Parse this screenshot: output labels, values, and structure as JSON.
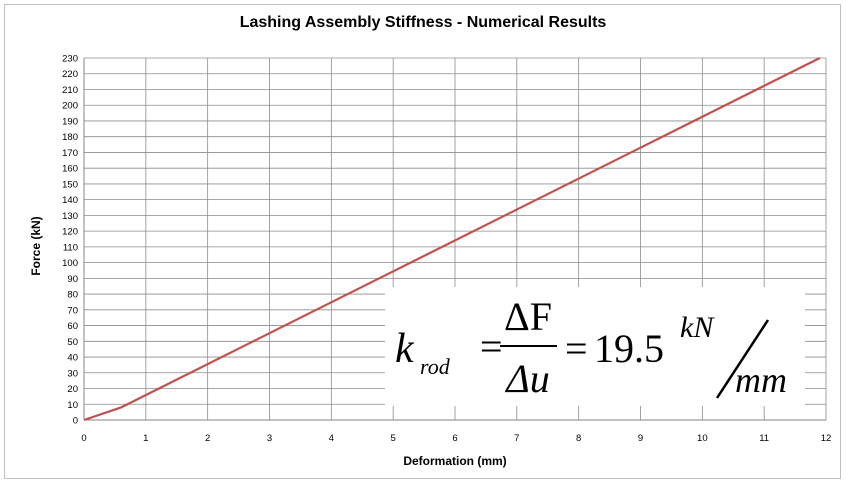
{
  "chart_data": {
    "type": "line",
    "title": "Lashing Assembly Stiffness - Numerical Results",
    "xlabel": "Deformation (mm)",
    "ylabel": "Force (kN)",
    "xlim": [
      0,
      12
    ],
    "ylim": [
      0,
      230
    ],
    "x_ticks": [
      "0",
      "1",
      "2",
      "3",
      "4",
      "5",
      "6",
      "7",
      "8",
      "9",
      "10",
      "11",
      "12"
    ],
    "y_ticks": [
      "0",
      "10",
      "20",
      "30",
      "40",
      "50",
      "60",
      "70",
      "80",
      "90",
      "100",
      "110",
      "120",
      "130",
      "140",
      "150",
      "160",
      "170",
      "180",
      "190",
      "200",
      "210",
      "220",
      "230"
    ],
    "grid": true,
    "series": [
      {
        "color": "#c0504d",
        "x": [
          0,
          0.6,
          11.9
        ],
        "y": [
          0,
          8,
          230
        ]
      }
    ],
    "annotation": {
      "k": "k",
      "k_subscript": "rod",
      "numerator": "ΔF",
      "denominator": "Δu",
      "equals": "=",
      "value": "19.5",
      "unit_top": "kN",
      "unit_slash": "/",
      "unit_bottom": "mm"
    }
  }
}
